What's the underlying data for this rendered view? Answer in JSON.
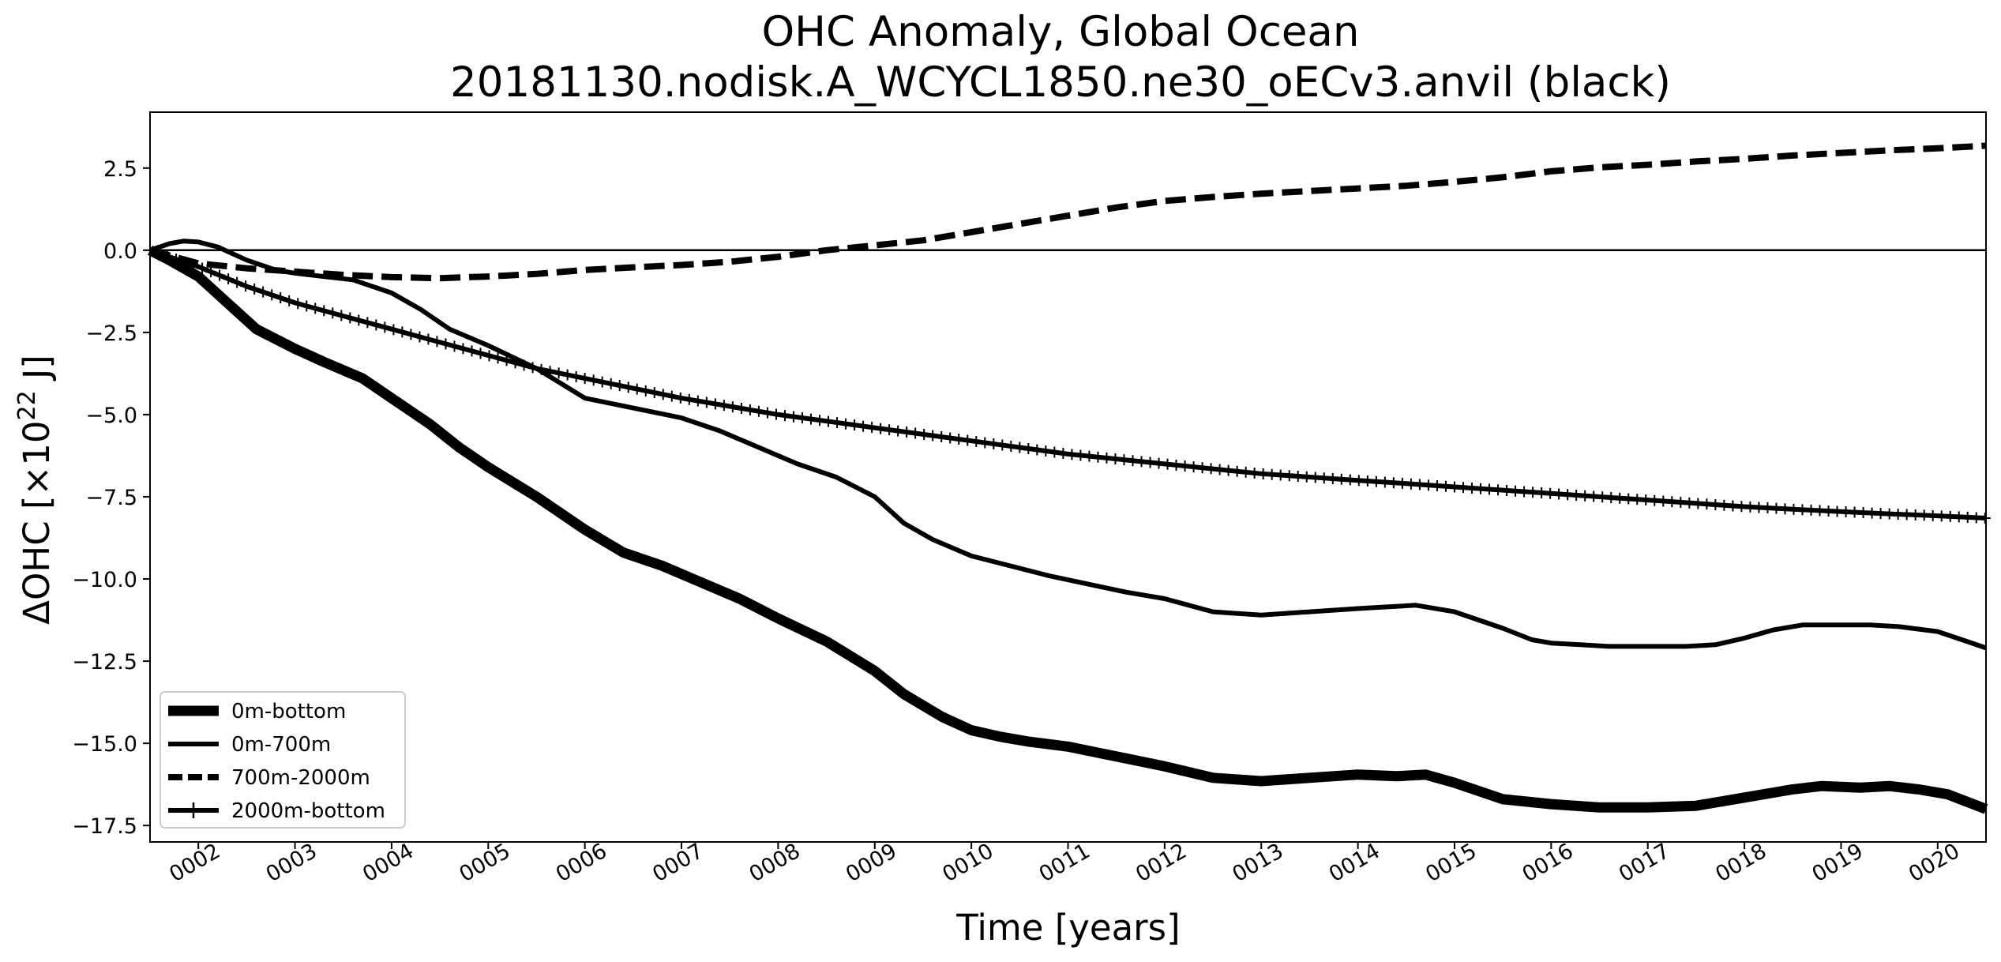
{
  "chart_data": {
    "type": "line",
    "title": "OHC Anomaly, Global Ocean",
    "subtitle": "20181130.nodisk.A_WCYCL1850.ne30_oECv3.anvil (black)",
    "xlabel": "Time [years]",
    "ylabel_main": "ΔOHC [×10",
    "ylabel_exp": "22",
    "ylabel_end": " J]",
    "xlim": [
      1.5,
      20.5
    ],
    "ylim": [
      -18.0,
      4.2
    ],
    "x_ticks": [
      2,
      3,
      4,
      5,
      6,
      7,
      8,
      9,
      10,
      11,
      12,
      13,
      14,
      15,
      16,
      17,
      18,
      19,
      20
    ],
    "x_tick_labels": [
      "0002",
      "0003",
      "0004",
      "0005",
      "0006",
      "0007",
      "0008",
      "0009",
      "0010",
      "0011",
      "0012",
      "0013",
      "0014",
      "0015",
      "0016",
      "0017",
      "0018",
      "0019",
      "0020"
    ],
    "y_ticks": [
      2.5,
      0.0,
      -2.5,
      -5.0,
      -7.5,
      -10.0,
      -12.5,
      -15.0,
      -17.5
    ],
    "y_tick_labels": [
      "2.5",
      "0.0",
      "−2.5",
      "−5.0",
      "−7.5",
      "−10.0",
      "−12.5",
      "−15.0",
      "−17.5"
    ],
    "zero_line": true,
    "grid": false,
    "legend_position": "lower-left",
    "series": [
      {
        "name": "0m-bottom",
        "style": "thick",
        "x": [
          1.5,
          1.7,
          2.0,
          2.3,
          2.6,
          3.0,
          3.3,
          3.7,
          4.0,
          4.4,
          4.7,
          5.0,
          5.5,
          6.0,
          6.4,
          6.8,
          7.2,
          7.6,
          8.0,
          8.5,
          9.0,
          9.3,
          9.7,
          10.0,
          10.3,
          10.6,
          11.0,
          11.5,
          12.0,
          12.5,
          13.0,
          13.5,
          14.0,
          14.4,
          14.7,
          15.0,
          15.5,
          16.0,
          16.5,
          17.0,
          17.5,
          18.0,
          18.5,
          18.8,
          19.2,
          19.5,
          19.8,
          20.1,
          20.5
        ],
        "y": [
          0.0,
          -0.3,
          -0.8,
          -1.6,
          -2.4,
          -3.0,
          -3.4,
          -3.9,
          -4.5,
          -5.3,
          -6.0,
          -6.6,
          -7.5,
          -8.5,
          -9.2,
          -9.6,
          -10.1,
          -10.6,
          -11.2,
          -11.9,
          -12.8,
          -13.5,
          -14.2,
          -14.6,
          -14.8,
          -14.95,
          -15.1,
          -15.4,
          -15.7,
          -16.05,
          -16.15,
          -16.05,
          -15.95,
          -16.0,
          -15.95,
          -16.2,
          -16.7,
          -16.85,
          -16.95,
          -16.95,
          -16.9,
          -16.65,
          -16.4,
          -16.3,
          -16.35,
          -16.3,
          -16.4,
          -16.55,
          -17.0
        ]
      },
      {
        "name": "0m-700m",
        "style": "solid",
        "x": [
          1.5,
          1.7,
          1.85,
          2.0,
          2.2,
          2.5,
          2.8,
          3.0,
          3.3,
          3.6,
          4.0,
          4.3,
          4.6,
          5.0,
          5.5,
          6.0,
          6.5,
          7.0,
          7.4,
          7.8,
          8.2,
          8.6,
          9.0,
          9.3,
          9.6,
          10.0,
          10.4,
          10.8,
          11.2,
          11.6,
          12.0,
          12.5,
          13.0,
          13.5,
          14.0,
          14.3,
          14.6,
          15.0,
          15.5,
          15.8,
          16.0,
          16.3,
          16.6,
          17.0,
          17.4,
          17.7,
          18.0,
          18.3,
          18.6,
          19.0,
          19.3,
          19.6,
          20.0,
          20.2,
          20.5
        ],
        "y": [
          0.0,
          0.2,
          0.28,
          0.25,
          0.1,
          -0.3,
          -0.6,
          -0.7,
          -0.8,
          -0.9,
          -1.3,
          -1.8,
          -2.4,
          -2.9,
          -3.6,
          -4.5,
          -4.8,
          -5.1,
          -5.5,
          -6.0,
          -6.5,
          -6.9,
          -7.5,
          -8.3,
          -8.8,
          -9.3,
          -9.6,
          -9.9,
          -10.15,
          -10.4,
          -10.6,
          -11.0,
          -11.1,
          -11.0,
          -10.9,
          -10.85,
          -10.8,
          -11.0,
          -11.5,
          -11.85,
          -11.95,
          -12.0,
          -12.05,
          -12.05,
          -12.05,
          -12.0,
          -11.8,
          -11.55,
          -11.4,
          -11.4,
          -11.4,
          -11.45,
          -11.6,
          -11.8,
          -12.1
        ]
      },
      {
        "name": "700m-2000m",
        "style": "dashed",
        "x": [
          1.5,
          2.0,
          2.5,
          3.0,
          3.5,
          4.0,
          4.5,
          5.0,
          5.5,
          6.0,
          6.5,
          7.0,
          7.5,
          8.0,
          8.5,
          9.0,
          9.5,
          10.0,
          10.5,
          11.0,
          11.5,
          12.0,
          12.5,
          13.0,
          13.5,
          14.0,
          14.5,
          15.0,
          15.5,
          16.0,
          16.5,
          17.0,
          17.5,
          18.0,
          18.5,
          19.0,
          19.5,
          20.0,
          20.5
        ],
        "y": [
          0.0,
          -0.4,
          -0.55,
          -0.65,
          -0.75,
          -0.82,
          -0.85,
          -0.8,
          -0.72,
          -0.6,
          -0.52,
          -0.45,
          -0.35,
          -0.2,
          0.0,
          0.15,
          0.3,
          0.55,
          0.8,
          1.05,
          1.3,
          1.5,
          1.62,
          1.72,
          1.8,
          1.88,
          1.96,
          2.08,
          2.22,
          2.4,
          2.52,
          2.6,
          2.7,
          2.78,
          2.88,
          2.96,
          3.04,
          3.1,
          3.18
        ]
      },
      {
        "name": "2000m-bottom",
        "style": "solid-plus",
        "x": [
          1.5,
          2.0,
          2.5,
          3.0,
          3.5,
          4.0,
          4.5,
          5.0,
          5.5,
          6.0,
          6.5,
          7.0,
          7.5,
          8.0,
          8.5,
          9.0,
          9.5,
          10.0,
          10.5,
          11.0,
          11.5,
          12.0,
          12.5,
          13.0,
          13.5,
          14.0,
          14.5,
          15.0,
          15.5,
          16.0,
          16.5,
          17.0,
          17.5,
          18.0,
          18.5,
          19.0,
          19.5,
          20.0,
          20.5
        ],
        "y": [
          0.0,
          -0.5,
          -1.1,
          -1.6,
          -2.0,
          -2.4,
          -2.8,
          -3.2,
          -3.6,
          -3.9,
          -4.2,
          -4.5,
          -4.75,
          -5.0,
          -5.2,
          -5.4,
          -5.6,
          -5.8,
          -6.0,
          -6.2,
          -6.35,
          -6.5,
          -6.65,
          -6.8,
          -6.9,
          -7.0,
          -7.1,
          -7.2,
          -7.3,
          -7.4,
          -7.5,
          -7.6,
          -7.7,
          -7.8,
          -7.88,
          -7.95,
          -8.02,
          -8.08,
          -8.15
        ]
      }
    ]
  }
}
